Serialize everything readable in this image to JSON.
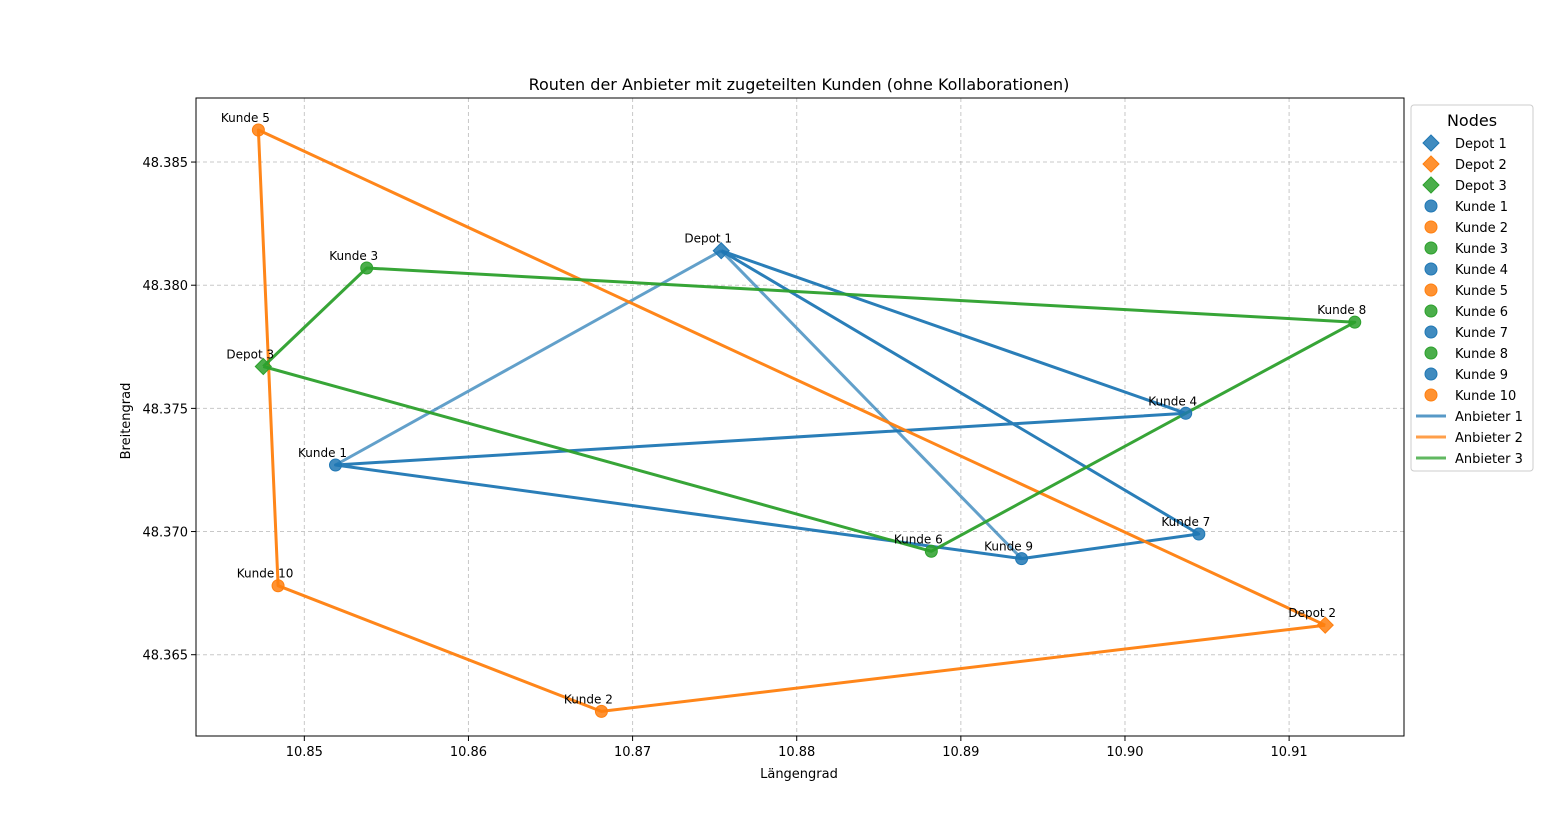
{
  "chart_data": {
    "type": "scatter",
    "title": "Routen der Anbieter mit zugeteilten Kunden (ohne Kollaborationen)",
    "xlabel": "Längengrad",
    "ylabel": "Breitengrad",
    "xlim": [
      10.8434,
      10.917
    ],
    "ylim": [
      48.3617,
      48.3876
    ],
    "xticks": [
      10.85,
      10.86,
      10.87,
      10.88,
      10.89,
      10.9,
      10.91
    ],
    "xtick_labels": [
      "10.85",
      "10.86",
      "10.87",
      "10.88",
      "10.89",
      "10.90",
      "10.91"
    ],
    "yticks": [
      48.365,
      48.37,
      48.375,
      48.38,
      48.385
    ],
    "ytick_labels": [
      "48.365",
      "48.370",
      "48.375",
      "48.380",
      "48.385"
    ],
    "grid": true,
    "legend_title": "Nodes",
    "legend_position": "outside-right-top",
    "colors": {
      "Anbieter 1": "#1f77b4",
      "Anbieter 2": "#ff7f0e",
      "Anbieter 3": "#2ca02c"
    },
    "nodes": [
      {
        "name": "Depot 1",
        "kind": "depot",
        "group": "Anbieter 1",
        "x": 10.8754,
        "y": 48.3814
      },
      {
        "name": "Depot 2",
        "kind": "depot",
        "group": "Anbieter 2",
        "x": 10.9122,
        "y": 48.3662
      },
      {
        "name": "Depot 3",
        "kind": "depot",
        "group": "Anbieter 3",
        "x": 10.8475,
        "y": 48.3767
      },
      {
        "name": "Kunde 1",
        "kind": "customer",
        "group": "Anbieter 1",
        "x": 10.8519,
        "y": 48.3727
      },
      {
        "name": "Kunde 2",
        "kind": "customer",
        "group": "Anbieter 2",
        "x": 10.8681,
        "y": 48.3627
      },
      {
        "name": "Kunde 3",
        "kind": "customer",
        "group": "Anbieter 3",
        "x": 10.8538,
        "y": 48.3807
      },
      {
        "name": "Kunde 4",
        "kind": "customer",
        "group": "Anbieter 1",
        "x": 10.9037,
        "y": 48.3748
      },
      {
        "name": "Kunde 5",
        "kind": "customer",
        "group": "Anbieter 2",
        "x": 10.8472,
        "y": 48.3863
      },
      {
        "name": "Kunde 6",
        "kind": "customer",
        "group": "Anbieter 3",
        "x": 10.8882,
        "y": 48.3692
      },
      {
        "name": "Kunde 7",
        "kind": "customer",
        "group": "Anbieter 1",
        "x": 10.9045,
        "y": 48.3699
      },
      {
        "name": "Kunde 8",
        "kind": "customer",
        "group": "Anbieter 3",
        "x": 10.914,
        "y": 48.3785
      },
      {
        "name": "Kunde 9",
        "kind": "customer",
        "group": "Anbieter 1",
        "x": 10.8937,
        "y": 48.3689
      },
      {
        "name": "Kunde 10",
        "kind": "customer",
        "group": "Anbieter 2",
        "x": 10.8484,
        "y": 48.3678
      }
    ],
    "series": [
      {
        "name": "Anbieter 1",
        "color": "#1f77b4",
        "routes": [
          [
            "Depot 1",
            "Kunde 1"
          ],
          [
            "Depot 1",
            "Kunde 9"
          ],
          [
            "Depot 1",
            "Kunde 4",
            "Kunde 1",
            "Kunde 9",
            "Kunde 7",
            "Depot 1"
          ]
        ]
      },
      {
        "name": "Anbieter 2",
        "color": "#ff7f0e",
        "routes": [
          [
            "Depot 2",
            "Kunde 2",
            "Kunde 10",
            "Kunde 5",
            "Depot 2"
          ]
        ]
      },
      {
        "name": "Anbieter 3",
        "color": "#2ca02c",
        "routes": [
          [
            "Depot 3",
            "Kunde 3",
            "Kunde 8",
            "Kunde 4",
            "Kunde 6",
            "Depot 3"
          ]
        ]
      }
    ],
    "legend": [
      {
        "label": "Depot 1",
        "marker": "diamond",
        "color": "#1f77b4"
      },
      {
        "label": "Depot 2",
        "marker": "diamond",
        "color": "#ff7f0e"
      },
      {
        "label": "Depot 3",
        "marker": "diamond",
        "color": "#2ca02c"
      },
      {
        "label": "Kunde 1",
        "marker": "circle",
        "color": "#1f77b4"
      },
      {
        "label": "Kunde 2",
        "marker": "circle",
        "color": "#ff7f0e"
      },
      {
        "label": "Kunde 3",
        "marker": "circle",
        "color": "#2ca02c"
      },
      {
        "label": "Kunde 4",
        "marker": "circle",
        "color": "#1f77b4"
      },
      {
        "label": "Kunde 5",
        "marker": "circle",
        "color": "#ff7f0e"
      },
      {
        "label": "Kunde 6",
        "marker": "circle",
        "color": "#2ca02c"
      },
      {
        "label": "Kunde 7",
        "marker": "circle",
        "color": "#1f77b4"
      },
      {
        "label": "Kunde 8",
        "marker": "circle",
        "color": "#2ca02c"
      },
      {
        "label": "Kunde 9",
        "marker": "circle",
        "color": "#1f77b4"
      },
      {
        "label": "Kunde 10",
        "marker": "circle",
        "color": "#ff7f0e"
      },
      {
        "label": "Anbieter 1",
        "marker": "line",
        "color": "#1f77b4"
      },
      {
        "label": "Anbieter 2",
        "marker": "line",
        "color": "#ff7f0e"
      },
      {
        "label": "Anbieter 3",
        "marker": "line",
        "color": "#2ca02c"
      }
    ]
  }
}
